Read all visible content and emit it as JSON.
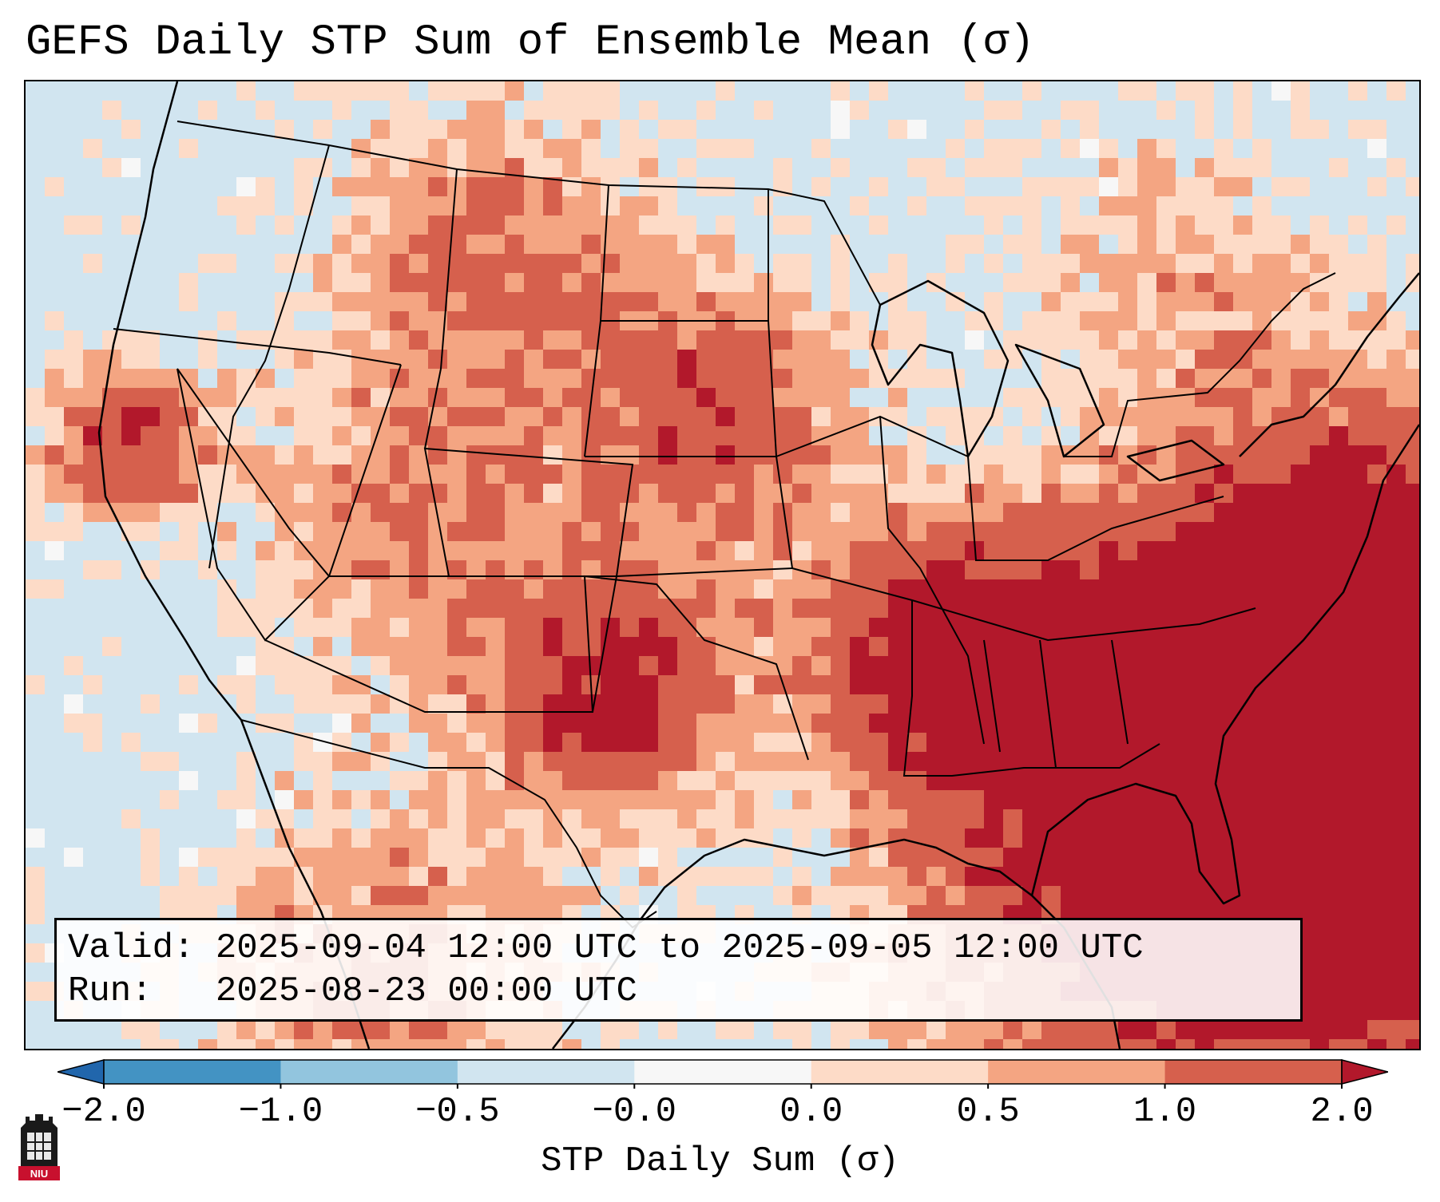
{
  "title": "GEFS Daily STP Sum of Ensemble Mean (σ)",
  "info": {
    "valid_label": "Valid:",
    "valid_value": "2025-09-04 12:00 UTC to 2025-09-05 12:00 UTC",
    "run_label": "Run:",
    "run_value": "2025-08-23 00:00 UTC"
  },
  "colorbar": {
    "label": "STP Daily Sum (σ)",
    "tick_labels": [
      "−2.0",
      "−1.0",
      "−0.5",
      "−0.0",
      "0.0",
      "0.5",
      "1.0",
      "2.0"
    ],
    "colors": [
      "#2166ac",
      "#4393c3",
      "#92c5de",
      "#d1e5f0",
      "#f7f7f7",
      "#fddbc7",
      "#f4a582",
      "#d6604d",
      "#b2182b"
    ]
  },
  "logo": {
    "text": "NIU"
  },
  "chart_data": {
    "type": "heatmap",
    "title": "GEFS Daily STP Sum of Ensemble Mean (σ)",
    "colorbar_label": "STP Daily Sum (σ)",
    "bins": [
      {
        "range": "< -2.0",
        "color": "#2166ac"
      },
      {
        "range": "-2.0 to -1.0",
        "color": "#4393c3"
      },
      {
        "range": "-1.0 to -0.5",
        "color": "#92c5de"
      },
      {
        "range": "-0.5 to -0.0",
        "color": "#d1e5f0"
      },
      {
        "range": "-0.0 to 0.0",
        "color": "#f7f7f7"
      },
      {
        "range": "0.0 to 0.5",
        "color": "#fddbc7"
      },
      {
        "range": "0.5 to 1.0",
        "color": "#f4a582"
      },
      {
        "range": "1.0 to 2.0",
        "color": "#d6604d"
      },
      {
        "range": "> 2.0",
        "color": "#b2182b"
      }
    ],
    "regions": [
      {
        "name": "Atlantic off Southeast coast",
        "level": "> 2.0"
      },
      {
        "name": "Atlantic off Mid-Atlantic coast",
        "level": "1.0 to 2.0"
      },
      {
        "name": "Mid-Mississippi Valley / Tennessee",
        "level": "> 2.0"
      },
      {
        "name": "Northern Plains / Dakotas",
        "level": "1.0 to 2.0"
      },
      {
        "name": "Southern High Plains / West Texas",
        "level": "> 2.0"
      },
      {
        "name": "Utah / Great Basin",
        "level": "0.5 to 1.0"
      },
      {
        "name": "Northern California coast",
        "level": "> 2.0"
      },
      {
        "name": "Northern Rockies",
        "level": "1.0 to 2.0"
      }
    ]
  }
}
